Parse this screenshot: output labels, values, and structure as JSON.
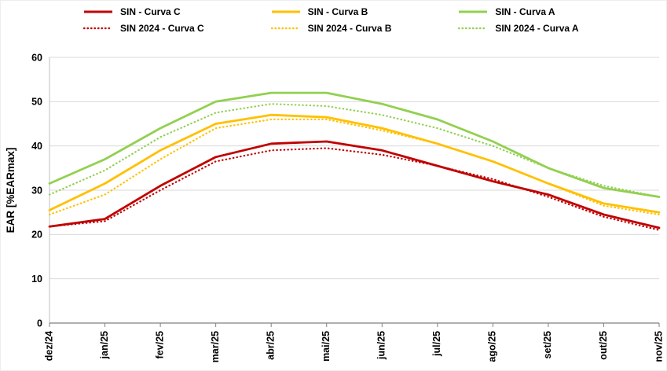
{
  "chart_data": {
    "type": "line",
    "title": "",
    "xlabel": "",
    "ylabel": "EAR [%EARmax]",
    "ylim": [
      0,
      60
    ],
    "yticks": [
      0,
      10,
      20,
      30,
      40,
      50,
      60
    ],
    "grid": "horizontal",
    "legend_position": "top",
    "categories": [
      "dez/24",
      "jan/25",
      "fev/25",
      "mar/25",
      "abr/25",
      "mai/25",
      "jun/25",
      "jul/25",
      "ago/25",
      "set/25",
      "out/25",
      "nov/25"
    ],
    "series": [
      {
        "name": "SIN - Curva C",
        "color": "#C00000",
        "style": "solid",
        "values": [
          21.8,
          23.5,
          31.0,
          37.5,
          40.5,
          41.0,
          39.0,
          35.5,
          32.0,
          29.0,
          24.5,
          21.5
        ]
      },
      {
        "name": "SIN - Curva B",
        "color": "#FFC000",
        "style": "solid",
        "values": [
          25.5,
          31.5,
          39.0,
          45.0,
          47.0,
          46.5,
          44.0,
          40.5,
          36.5,
          31.5,
          27.0,
          25.0
        ]
      },
      {
        "name": "SIN - Curva A",
        "color": "#92D050",
        "style": "solid",
        "values": [
          31.5,
          37.0,
          44.0,
          50.0,
          52.0,
          52.0,
          49.5,
          46.0,
          41.0,
          35.0,
          30.5,
          28.5
        ]
      },
      {
        "name": "SIN 2024 - Curva C",
        "color": "#C00000",
        "style": "dotted",
        "values": [
          21.8,
          23.0,
          30.0,
          36.5,
          39.0,
          39.5,
          38.0,
          35.5,
          32.5,
          28.5,
          24.0,
          21.0
        ]
      },
      {
        "name": "SIN 2024 - Curva B",
        "color": "#FFC000",
        "style": "dotted",
        "values": [
          24.5,
          29.0,
          37.0,
          44.0,
          46.0,
          46.0,
          43.5,
          40.5,
          36.5,
          31.5,
          26.5,
          24.5
        ]
      },
      {
        "name": "SIN 2024 - Curva A",
        "color": "#92D050",
        "style": "dotted",
        "values": [
          29.0,
          34.5,
          42.0,
          47.5,
          49.5,
          49.0,
          47.0,
          44.0,
          40.0,
          35.0,
          31.0,
          28.5
        ]
      }
    ],
    "axis_color": "#808080",
    "gridline_color": "#d9d9d9"
  }
}
